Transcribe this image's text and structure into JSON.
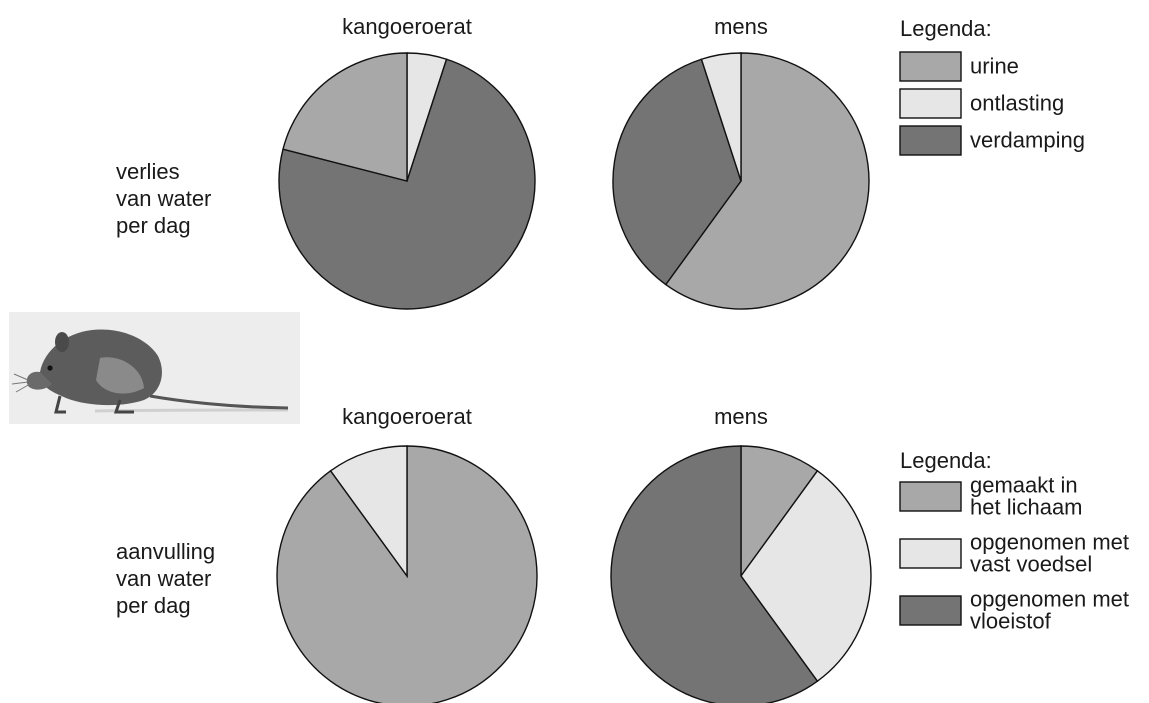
{
  "colors": {
    "medium_gray": "#a8a8a8",
    "light_gray": "#e6e6e6",
    "dark_gray": "#747474",
    "outline": "#111111"
  },
  "illustration": {
    "icon": "kangaroo-rat-drawing"
  },
  "chart_data": [
    {
      "type": "pie",
      "title": "kangoeroerat",
      "row_label": [
        "verlies",
        "van water",
        "per dag"
      ],
      "slices": [
        {
          "label": "ontlasting",
          "value": 5,
          "color": "#e6e6e6"
        },
        {
          "label": "verdamping",
          "value": 74,
          "color": "#747474"
        },
        {
          "label": "urine",
          "value": 21,
          "color": "#a8a8a8"
        }
      ]
    },
    {
      "type": "pie",
      "title": "mens",
      "row_label": [
        "verlies",
        "van water",
        "per dag"
      ],
      "slices": [
        {
          "label": "urine",
          "value": 60,
          "color": "#a8a8a8"
        },
        {
          "label": "verdamping",
          "value": 35,
          "color": "#747474"
        },
        {
          "label": "ontlasting",
          "value": 5,
          "color": "#e6e6e6"
        }
      ]
    },
    {
      "type": "pie",
      "title": "kangoeroerat",
      "row_label": [
        "aanvulling",
        "van water",
        "per dag"
      ],
      "slices": [
        {
          "label": "gemaakt in het lichaam",
          "value": 90,
          "color": "#a8a8a8"
        },
        {
          "label": "opgenomen met vast voedsel",
          "value": 10,
          "color": "#e6e6e6"
        }
      ]
    },
    {
      "type": "pie",
      "title": "mens",
      "row_label": [
        "aanvulling",
        "van water",
        "per dag"
      ],
      "slices": [
        {
          "label": "gemaakt in het lichaam",
          "value": 10,
          "color": "#a8a8a8"
        },
        {
          "label": "opgenomen met vast voedsel",
          "value": 30,
          "color": "#e6e6e6"
        },
        {
          "label": "opgenomen met vloeistof",
          "value": 60,
          "color": "#747474"
        }
      ]
    }
  ],
  "legends": {
    "top": {
      "title": "Legenda:",
      "items": [
        {
          "label": [
            "urine"
          ],
          "color": "#a8a8a8"
        },
        {
          "label": [
            "ontlasting"
          ],
          "color": "#e6e6e6"
        },
        {
          "label": [
            "verdamping"
          ],
          "color": "#747474"
        }
      ]
    },
    "bottom": {
      "title": "Legenda:",
      "items": [
        {
          "label": [
            "gemaakt in",
            "het lichaam"
          ],
          "color": "#a8a8a8"
        },
        {
          "label": [
            "opgenomen met",
            "vast voedsel"
          ],
          "color": "#e6e6e6"
        },
        {
          "label": [
            "opgenomen met",
            "vloeistof"
          ],
          "color": "#747474"
        }
      ]
    }
  }
}
